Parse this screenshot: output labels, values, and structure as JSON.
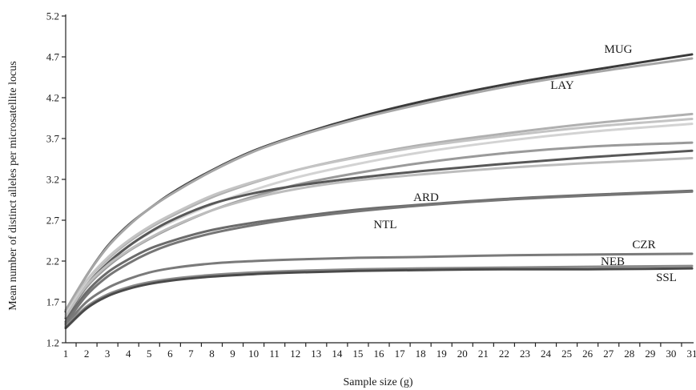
{
  "chart_data": {
    "type": "line",
    "title": "",
    "xlabel": "Sample size (g)",
    "ylabel": "Mean number of distinct alleles per microsatellite locus",
    "xlim": [
      1,
      31
    ],
    "ylim": [
      1.2,
      5.2
    ],
    "y_ticks": [
      "1.2",
      "1.7",
      "2.2",
      "2.7",
      "3.2",
      "3.7",
      "4.2",
      "4.7",
      "5.2"
    ],
    "x_ticks": [
      "1",
      "2",
      "3",
      "4",
      "5",
      "6",
      "7",
      "8",
      "9",
      "10",
      "11",
      "12",
      "13",
      "14",
      "15",
      "16",
      "17",
      "18",
      "19",
      "20",
      "21",
      "22",
      "23",
      "24",
      "25",
      "26",
      "27",
      "28",
      "29",
      "30",
      "31"
    ],
    "x": [
      1,
      2,
      3,
      4,
      5,
      6,
      8,
      10,
      12,
      15,
      18,
      22,
      26,
      31
    ],
    "series": [
      {
        "name": "MUG",
        "color": "#3a3a3a",
        "values": [
          1.58,
          2.02,
          2.38,
          2.64,
          2.84,
          3.02,
          3.31,
          3.55,
          3.73,
          3.96,
          4.15,
          4.36,
          4.53,
          4.73
        ]
      },
      {
        "name": "LAY",
        "color": "#a6a6a6",
        "values": [
          1.6,
          2.02,
          2.37,
          2.63,
          2.84,
          3.01,
          3.3,
          3.54,
          3.72,
          3.94,
          4.12,
          4.33,
          4.5,
          4.68
        ]
      },
      {
        "color": "#b0b0b0",
        "values": [
          1.55,
          1.95,
          2.22,
          2.43,
          2.6,
          2.74,
          2.98,
          3.16,
          3.31,
          3.48,
          3.62,
          3.76,
          3.88,
          4.0
        ]
      },
      {
        "color": "#c4c4c4",
        "values": [
          1.55,
          1.96,
          2.24,
          2.45,
          2.62,
          2.76,
          3.0,
          3.17,
          3.31,
          3.47,
          3.6,
          3.73,
          3.84,
          3.94
        ]
      },
      {
        "color": "#d3d3d3",
        "values": [
          1.54,
          1.92,
          2.18,
          2.38,
          2.54,
          2.67,
          2.89,
          3.07,
          3.22,
          3.39,
          3.53,
          3.67,
          3.78,
          3.88
        ]
      },
      {
        "color": "#9a9a9a",
        "values": [
          1.5,
          1.88,
          2.13,
          2.32,
          2.47,
          2.6,
          2.82,
          2.99,
          3.13,
          3.28,
          3.4,
          3.52,
          3.6,
          3.65
        ]
      },
      {
        "color": "#585858",
        "values": [
          1.5,
          1.9,
          2.17,
          2.38,
          2.55,
          2.69,
          2.9,
          3.03,
          3.12,
          3.22,
          3.3,
          3.39,
          3.47,
          3.55
        ]
      },
      {
        "color": "#bdbdbd",
        "values": [
          1.52,
          1.9,
          2.15,
          2.33,
          2.48,
          2.61,
          2.82,
          2.97,
          3.08,
          3.19,
          3.26,
          3.34,
          3.4,
          3.46
        ]
      },
      {
        "name": "ARD",
        "color": "#6b6b6b",
        "values": [
          1.46,
          1.82,
          2.06,
          2.22,
          2.35,
          2.44,
          2.58,
          2.67,
          2.74,
          2.83,
          2.89,
          2.96,
          3.01,
          3.06
        ]
      },
      {
        "name": "NTL",
        "color": "#767676",
        "values": [
          1.44,
          1.78,
          2.01,
          2.17,
          2.3,
          2.4,
          2.54,
          2.64,
          2.72,
          2.81,
          2.88,
          2.95,
          3.0,
          3.05
        ]
      },
      {
        "name": "CZR",
        "color": "#7a7a7a",
        "values": [
          1.42,
          1.7,
          1.87,
          1.98,
          2.06,
          2.11,
          2.17,
          2.2,
          2.22,
          2.24,
          2.25,
          2.27,
          2.28,
          2.29
        ]
      },
      {
        "name": "NEB",
        "color": "#8a8a8a",
        "values": [
          1.4,
          1.64,
          1.79,
          1.88,
          1.94,
          1.98,
          2.03,
          2.06,
          2.08,
          2.1,
          2.11,
          2.12,
          2.13,
          2.14
        ]
      },
      {
        "name": "SSL",
        "color": "#4a4a4a",
        "values": [
          1.38,
          1.62,
          1.77,
          1.86,
          1.92,
          1.96,
          2.01,
          2.04,
          2.06,
          2.08,
          2.09,
          2.1,
          2.1,
          2.11
        ]
      }
    ],
    "grid": false,
    "legend": "none"
  }
}
